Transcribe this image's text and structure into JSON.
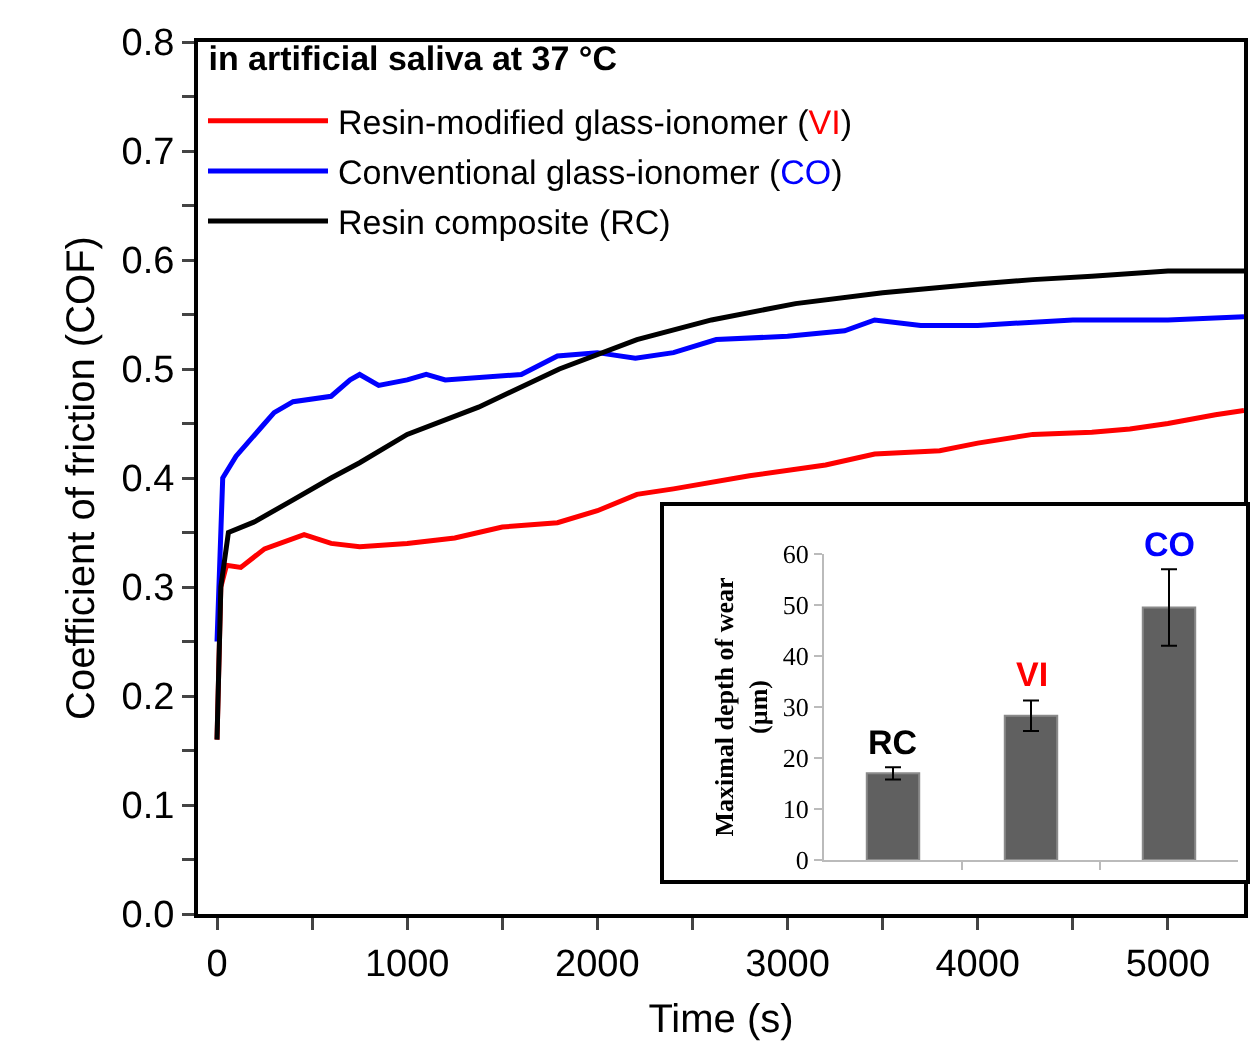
{
  "chart_data": [
    {
      "type": "line",
      "title": "in artificial saliva at 37 °C",
      "xlabel": "Time (s)",
      "ylabel": "Coefficient of friction (COF)",
      "xlim": [
        -100,
        5400
      ],
      "ylim": [
        0,
        0.8
      ],
      "xticks": [
        0,
        {
          "value": 500,
          "label": null
        },
        1000,
        {
          "value": 1500,
          "label": null
        },
        2000,
        {
          "value": 2500,
          "label": null
        },
        3000,
        {
          "value": 3500,
          "label": null
        },
        4000,
        {
          "value": 4500,
          "label": null
        },
        5000
      ],
      "yticks": [
        {
          "value": 0,
          "label": "0.0"
        },
        {
          "value": 0.05,
          "label": null
        },
        0.1,
        {
          "value": 0.15,
          "label": null
        },
        0.2,
        {
          "value": 0.25,
          "label": null
        },
        0.3,
        {
          "value": 0.35,
          "label": null
        },
        0.4,
        {
          "value": 0.45,
          "label": null
        },
        0.5,
        {
          "value": 0.55,
          "label": null
        },
        0.6,
        {
          "value": 0.65,
          "label": null
        },
        0.7,
        {
          "value": 0.75,
          "label": null
        },
        0.8
      ],
      "grid": false,
      "legend": "top left",
      "marker": "none",
      "line_style": "solid",
      "series": [
        {
          "name": "Resin-modified glass-ionomer (VI)",
          "color": "#ff0000",
          "x": [
            0,
            20,
            50,
            125,
            250,
            458,
            600,
            750,
            1000,
            1250,
            1500,
            1790,
            2000,
            2208,
            2400,
            2800,
            3200,
            3458,
            3800,
            4000,
            4290,
            4600,
            4800,
            5000,
            5250,
            5400
          ],
          "values": [
            0.16,
            0.3,
            0.32,
            0.318,
            0.335,
            0.348,
            0.34,
            0.337,
            0.34,
            0.345,
            0.355,
            0.359,
            0.37,
            0.385,
            0.39,
            0.402,
            0.412,
            0.422,
            0.425,
            0.432,
            0.44,
            0.442,
            0.445,
            0.45,
            0.458,
            0.462
          ]
        },
        {
          "name": "Conventional glass-ionomer (CO)",
          "color": "#0000ff",
          "x": [
            0,
            30,
            100,
            250,
            300,
            400,
            600,
            700,
            750,
            850,
            1000,
            1100,
            1200,
            1600,
            1790,
            2000,
            2200,
            2400,
            2625,
            3000,
            3300,
            3458,
            3700,
            4000,
            4500,
            5000,
            5400
          ],
          "values": [
            0.25,
            0.4,
            0.42,
            0.45,
            0.46,
            0.47,
            0.475,
            0.49,
            0.495,
            0.485,
            0.49,
            0.495,
            0.49,
            0.495,
            0.512,
            0.515,
            0.51,
            0.515,
            0.527,
            0.53,
            0.535,
            0.545,
            0.54,
            0.54,
            0.545,
            0.545,
            0.548
          ]
        },
        {
          "name": "Resin composite (RC)",
          "color": "#000000",
          "x": [
            0,
            20,
            60,
            200,
            400,
            600,
            750,
            1000,
            1375,
            1800,
            2208,
            2600,
            3042,
            3500,
            4000,
            4290,
            4600,
            5000,
            5250,
            5400
          ],
          "values": [
            0.16,
            0.3,
            0.35,
            0.36,
            0.38,
            0.4,
            0.414,
            0.44,
            0.465,
            0.5,
            0.527,
            0.545,
            0.56,
            0.57,
            0.578,
            0.582,
            0.585,
            0.59,
            0.59,
            0.59
          ]
        }
      ]
    },
    {
      "type": "bar",
      "ylabel": "Maximal depth of wear (µm)",
      "categories": [
        "RC",
        "VI",
        "CO"
      ],
      "values": [
        17,
        28.3,
        49.5
      ],
      "errors": [
        1.2,
        3,
        7.5
      ],
      "color": "#606060",
      "ylim": [
        0,
        60
      ],
      "yticks": [
        0,
        10,
        20,
        30,
        40,
        50,
        60
      ],
      "grid": false,
      "tick_labels": "y"
    }
  ]
}
